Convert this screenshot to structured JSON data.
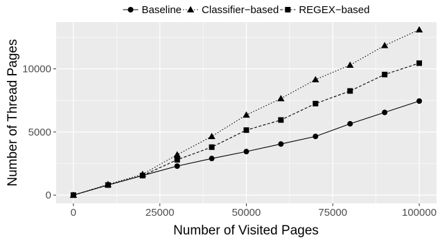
{
  "chart_data": {
    "type": "line",
    "xlabel": "Number of Visited Pages",
    "ylabel": "Number of Thread Pages",
    "xlim": [
      -5000,
      105000
    ],
    "ylim": [
      -650,
      13700
    ],
    "x_ticks": [
      0,
      25000,
      50000,
      75000,
      100000
    ],
    "x_tick_labels": [
      "0",
      "25000",
      "50000",
      "75000",
      "100000"
    ],
    "y_ticks": [
      0,
      5000,
      10000
    ],
    "y_tick_labels": [
      "0",
      "5000",
      "10000"
    ],
    "grid": true,
    "background_color": "#ebebeb",
    "grid_color": "#ffffff",
    "legend_position": "top",
    "x": [
      0,
      10000,
      20000,
      30000,
      40000,
      50000,
      60000,
      70000,
      80000,
      90000,
      100000
    ],
    "series": [
      {
        "name": "Baseline",
        "marker": "circle",
        "line_style": "solid",
        "values": [
          0,
          800,
          1550,
          2300,
          2900,
          3450,
          4050,
          4650,
          5650,
          6550,
          7450
        ]
      },
      {
        "name": "Classifier−based",
        "marker": "triangle",
        "line_style": "dotted",
        "values": [
          0,
          850,
          1650,
          3200,
          4650,
          6350,
          7650,
          9150,
          10300,
          11850,
          13100
        ]
      },
      {
        "name": "REGEX−based",
        "marker": "square",
        "line_style": "dashed",
        "values": [
          0,
          800,
          1550,
          2800,
          3800,
          5150,
          5950,
          7250,
          8250,
          9550,
          10450
        ]
      }
    ]
  }
}
